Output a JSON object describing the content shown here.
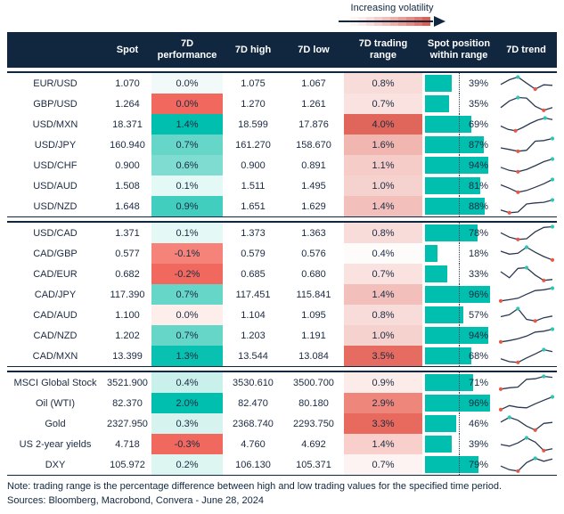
{
  "legend": {
    "label": "Increasing volatility",
    "gradient_steps": [
      "#fdf5f4",
      "#fbeae8",
      "#f8dcd9",
      "#f5cdc8",
      "#f2beb8",
      "#efaea7",
      "#eb9d95",
      "#e78b81",
      "#e3766b",
      "#df5f53"
    ]
  },
  "chart_data": {
    "type": "table",
    "columns": [
      "",
      "Spot",
      "7D performance",
      "7D high",
      "7D low",
      "7D trading range",
      "Spot position within range",
      "7D trend"
    ],
    "header": {
      "spot": "Spot",
      "performance": "7D performance",
      "high": "7D high",
      "low": "7D low",
      "range": "7D trading range",
      "position": "Spot position within range",
      "trend": "7D trend"
    },
    "position_midline_pct": 50,
    "blocks": [
      {
        "rows": [
          {
            "name": "EUR/USD",
            "spot": "1.070",
            "performance": "0.0%",
            "perf_bg": "#f1faf8",
            "high": "1.075",
            "low": "1.067",
            "range": "0.8%",
            "range_bg": "#f8dcda",
            "position_pct": 39,
            "position_label": "39%",
            "trend": [
              45,
              80,
              100,
              55,
              10,
              42,
              38
            ]
          },
          {
            "name": "GBP/USD",
            "spot": "1.264",
            "performance": "0.0%",
            "perf_bg": "#f1695e",
            "high": "1.270",
            "low": "1.261",
            "range": "0.7%",
            "range_bg": "#f9e2e0",
            "position_pct": 35,
            "position_label": "35%",
            "trend": [
              25,
              75,
              100,
              96,
              35,
              5,
              25
            ]
          },
          {
            "name": "USD/MXN",
            "spot": "18.371",
            "performance": "1.4%",
            "perf_bg": "#00bfae",
            "high": "18.599",
            "low": "17.876",
            "range": "4.0%",
            "range_bg": "#e0655a",
            "position_pct": 69,
            "position_label": "69%",
            "trend": [
              40,
              15,
              5,
              30,
              60,
              85,
              100,
              88
            ]
          },
          {
            "name": "USD/JPY",
            "spot": "160.940",
            "performance": "0.7%",
            "perf_bg": "#66d6c9",
            "high": "161.270",
            "low": "158.670",
            "range": "1.6%",
            "range_bg": "#f2b6b0",
            "position_pct": 87,
            "position_label": "87%",
            "trend": [
              30,
              18,
              5,
              12,
              80,
              85,
              100
            ]
          },
          {
            "name": "USD/CHF",
            "spot": "0.900",
            "performance": "0.6%",
            "perf_bg": "#7edcd1",
            "high": "0.900",
            "low": "0.891",
            "range": "1.1%",
            "range_bg": "#f5ccc8",
            "position_pct": 94,
            "position_label": "94%",
            "trend": [
              38,
              15,
              5,
              22,
              50,
              80,
              100
            ]
          },
          {
            "name": "USD/AUD",
            "spot": "1.508",
            "performance": "0.1%",
            "perf_bg": "#e4f8f5",
            "high": "1.511",
            "low": "1.495",
            "range": "1.0%",
            "range_bg": "#f6d2ce",
            "position_pct": 81,
            "position_label": "81%",
            "trend": [
              60,
              35,
              5,
              18,
              42,
              68,
              100
            ]
          },
          {
            "name": "USD/NZD",
            "spot": "1.648",
            "performance": "0.9%",
            "perf_bg": "#41cebf",
            "high": "1.651",
            "low": "1.629",
            "range": "1.4%",
            "range_bg": "#f3bfba",
            "position_pct": 88,
            "position_label": "88%",
            "trend": [
              25,
              5,
              10,
              70,
              78,
              83,
              100
            ]
          }
        ]
      },
      {
        "rows": [
          {
            "name": "USD/CAD",
            "spot": "1.371",
            "performance": "0.1%",
            "perf_bg": "#e4f8f5",
            "high": "1.373",
            "low": "1.363",
            "range": "0.8%",
            "range_bg": "#f8dcda",
            "position_pct": 78,
            "position_label": "78%",
            "trend": [
              55,
              22,
              5,
              10,
              62,
              95,
              100
            ]
          },
          {
            "name": "CAD/GBP",
            "spot": "0.577",
            "performance": "-0.1%",
            "perf_bg": "#f5837a",
            "high": "0.579",
            "low": "0.576",
            "range": "0.4%",
            "range_bg": "#fefbfb",
            "position_pct": 18,
            "position_label": "18%",
            "trend": [
              70,
              48,
              55,
              100,
              62,
              30,
              5
            ]
          },
          {
            "name": "CAD/EUR",
            "spot": "0.682",
            "performance": "-0.2%",
            "perf_bg": "#f1695e",
            "high": "0.685",
            "low": "0.680",
            "range": "0.7%",
            "range_bg": "#f9e2e0",
            "position_pct": 33,
            "position_label": "33%",
            "trend": [
              70,
              25,
              95,
              100,
              45,
              5,
              12
            ]
          },
          {
            "name": "CAD/JPY",
            "spot": "117.390",
            "performance": "0.7%",
            "perf_bg": "#66d6c9",
            "high": "117.451",
            "low": "115.841",
            "range": "1.4%",
            "range_bg": "#f3bfba",
            "position_pct": 96,
            "position_label": "96%",
            "trend": [
              5,
              14,
              25,
              55,
              82,
              88,
              100
            ]
          },
          {
            "name": "CAD/AUD",
            "spot": "1.100",
            "performance": "0.0%",
            "perf_bg": "#fdedeb",
            "high": "1.104",
            "low": "1.095",
            "range": "0.8%",
            "range_bg": "#f8dcda",
            "position_pct": 57,
            "position_label": "57%",
            "trend": [
              40,
              55,
              100,
              20,
              8,
              32,
              45
            ]
          },
          {
            "name": "CAD/NZD",
            "spot": "1.202",
            "performance": "0.7%",
            "perf_bg": "#66d6c9",
            "high": "1.203",
            "low": "1.191",
            "range": "1.0%",
            "range_bg": "#f6d2ce",
            "position_pct": 94,
            "position_label": "94%",
            "trend": [
              5,
              15,
              28,
              48,
              78,
              85,
              100
            ]
          },
          {
            "name": "CAD/MXN",
            "spot": "13.399",
            "performance": "1.3%",
            "perf_bg": "#09c1b0",
            "high": "13.544",
            "low": "13.084",
            "range": "3.5%",
            "range_bg": "#e66b60",
            "position_pct": 68,
            "position_label": "68%",
            "trend": [
              32,
              10,
              5,
              38,
              68,
              100,
              85
            ]
          }
        ]
      },
      {
        "rows": [
          {
            "name": "MSCI Global Stock",
            "spot": "3521.900",
            "performance": "0.4%",
            "perf_bg": "#c9f0ea",
            "high": "3530.610",
            "low": "3500.700",
            "range": "0.9%",
            "range_bg": "#fbecea",
            "position_pct": 71,
            "position_label": "71%",
            "trend": [
              5,
              15,
              20,
              78,
              82,
              100,
              93
            ]
          },
          {
            "name": "Oil (WTI)",
            "spot": "82.370",
            "performance": "2.0%",
            "perf_bg": "#00bfae",
            "high": "82.470",
            "low": "80.180",
            "range": "2.9%",
            "range_bg": "#ee867c",
            "position_pct": 96,
            "position_label": "96%",
            "trend": [
              5,
              35,
              22,
              18,
              48,
              75,
              100
            ]
          },
          {
            "name": "Gold",
            "spot": "2327.950",
            "performance": "0.3%",
            "perf_bg": "#d6f3ef",
            "high": "2368.740",
            "low": "2293.750",
            "range": "3.3%",
            "range_bg": "#e8695e",
            "position_pct": 46,
            "position_label": "46%",
            "trend": [
              65,
              100,
              78,
              35,
              5,
              55,
              62
            ]
          },
          {
            "name": "US 2-year yields",
            "spot": "4.718",
            "performance": "-0.3%",
            "perf_bg": "#f1695e",
            "high": "4.760",
            "low": "4.692",
            "range": "1.4%",
            "range_bg": "#f8cfca",
            "position_pct": 39,
            "position_label": "39%",
            "trend": [
              50,
              38,
              62,
              100,
              68,
              5,
              18
            ]
          },
          {
            "name": "DXY",
            "spot": "105.972",
            "performance": "0.2%",
            "perf_bg": "#def6f2",
            "high": "106.130",
            "low": "105.371",
            "range": "0.7%",
            "range_bg": "#fdf3f2",
            "position_pct": 79,
            "position_label": "79%",
            "trend": [
              42,
              15,
              5,
              68,
              100,
              78,
              95
            ]
          }
        ]
      }
    ]
  },
  "footer": {
    "note": "Note: trading range is the percentage difference between high and low trading values for the specified time period.",
    "sources": "Sources: Bloomberg, Macrobond, Convera - June 28, 2024"
  },
  "colors": {
    "navy": "#10273f",
    "text": "#1b2a41",
    "bar_teal": "#00bfae",
    "spark_line": "#2b3a52",
    "dot_high": "#2fc5b6",
    "dot_low": "#e85744"
  }
}
